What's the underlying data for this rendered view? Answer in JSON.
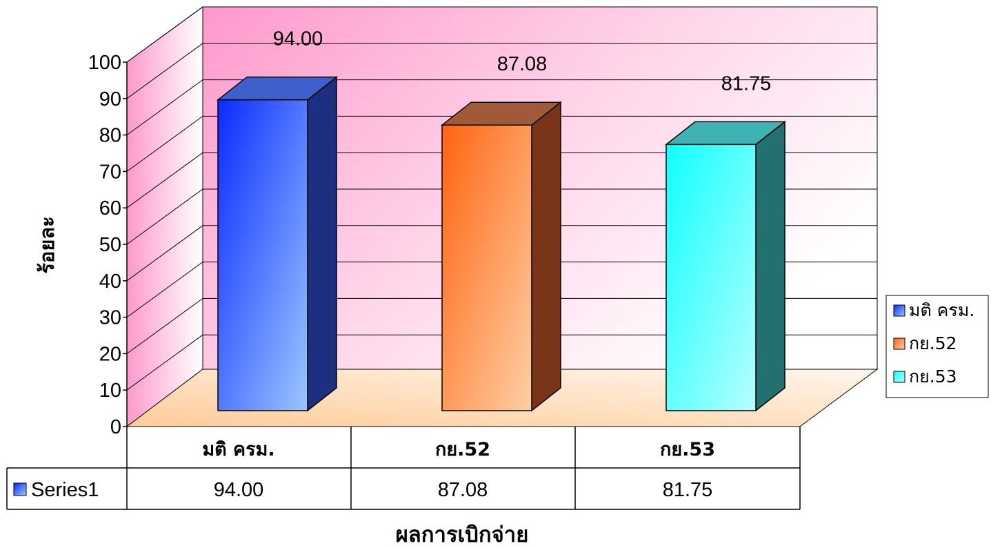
{
  "chart_data": {
    "type": "bar",
    "categories": [
      "มติ ครม.",
      "กย.52",
      "กย.53"
    ],
    "series": [
      {
        "name": "Series1",
        "values": [
          94.0,
          87.08,
          81.75
        ]
      }
    ],
    "value_labels": [
      "94.00",
      "87.08",
      "81.75"
    ],
    "xlabel": "ผลการเบิกจ่าย",
    "ylabel": "ร้อยละ",
    "ylim": [
      0,
      100
    ],
    "yticks": [
      "0",
      "10",
      "20",
      "30",
      "40",
      "50",
      "60",
      "70",
      "80",
      "90",
      "100"
    ],
    "grid": true,
    "legend_position": "right",
    "data_table": true,
    "bar_colors": [
      "#4f7dff",
      "#ff8c50",
      "#4dfcfc"
    ],
    "bar_side_colors": [
      "#1c2f80",
      "#7a3418",
      "#237070"
    ],
    "bar_top_colors": [
      "#3f5fcc",
      "#a05a3a",
      "#3fb3b3"
    ],
    "back_wall_color": "#ff99cc",
    "floor_color": "#ffcc99"
  }
}
